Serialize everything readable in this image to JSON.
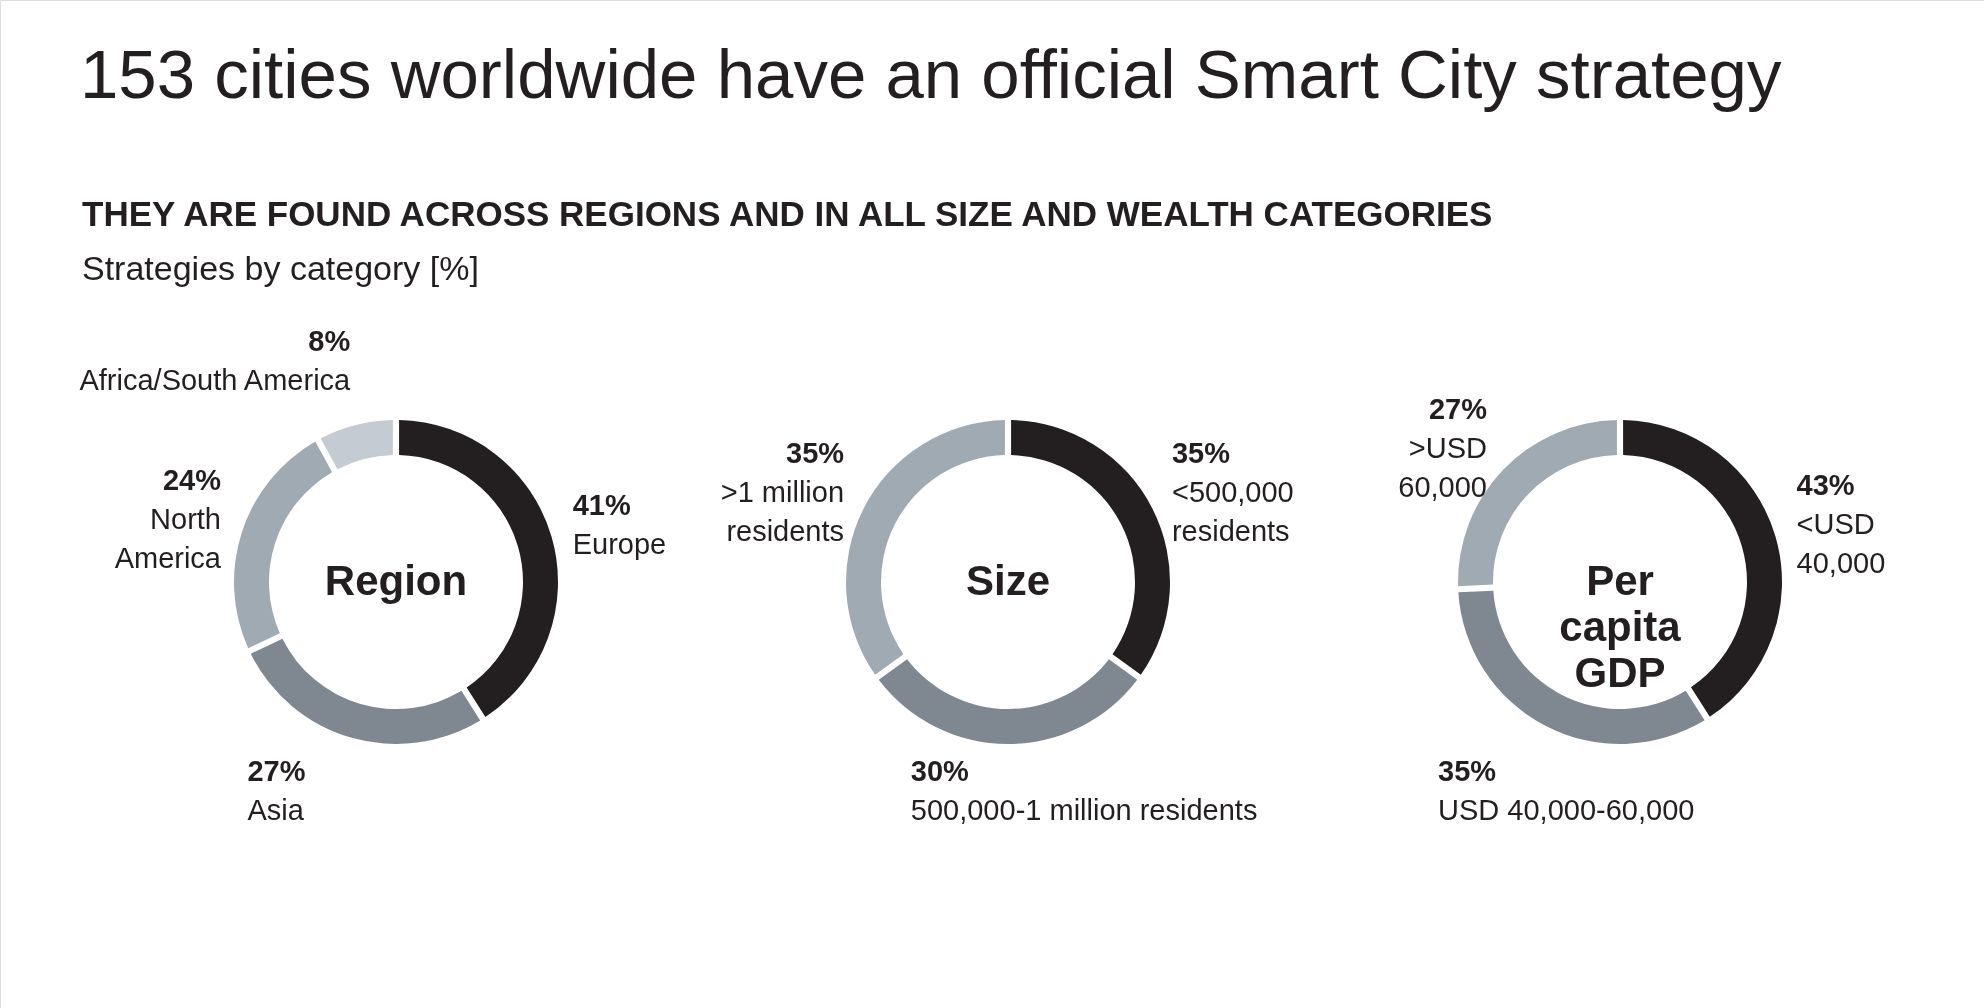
{
  "chart_data": [
    {
      "type": "other",
      "title": "153 cities worldwide have an official Smart City strategy",
      "subtitle": "THEY ARE FOUND ACROSS REGIONS AND IN ALL SIZE AND WEALTH CATEGORIES",
      "annotations": [
        "Strategies by category [%]"
      ]
    },
    {
      "type": "donut",
      "title": "Region",
      "categories": [
        "Europe",
        "Asia",
        "North America",
        "Africa/South America"
      ],
      "values": [
        41,
        27,
        24,
        8
      ],
      "colors": [
        "#231f20",
        "#7f8891",
        "#a0aab3",
        "#c4cbd2"
      ],
      "value_labels": [
        "41%",
        "27%",
        "24%",
        "8%"
      ]
    },
    {
      "type": "donut",
      "title": "Size",
      "categories": [
        "<500,000 residents",
        "500,000-1 million residents",
        ">1 million residents"
      ],
      "values": [
        35,
        30,
        35
      ],
      "colors": [
        "#231f20",
        "#7f8891",
        "#a0aab3"
      ],
      "value_labels": [
        "35%",
        "30%",
        "35%"
      ]
    },
    {
      "type": "donut",
      "title": "Per capita GDP",
      "categories": [
        "<USD 40,000",
        "USD 40,000-60,000",
        ">USD 60,000"
      ],
      "values": [
        43,
        35,
        27
      ],
      "colors": [
        "#231f20",
        "#7f8891",
        "#a0aab3"
      ],
      "value_labels": [
        "43%",
        "35%",
        "27%"
      ]
    }
  ]
}
